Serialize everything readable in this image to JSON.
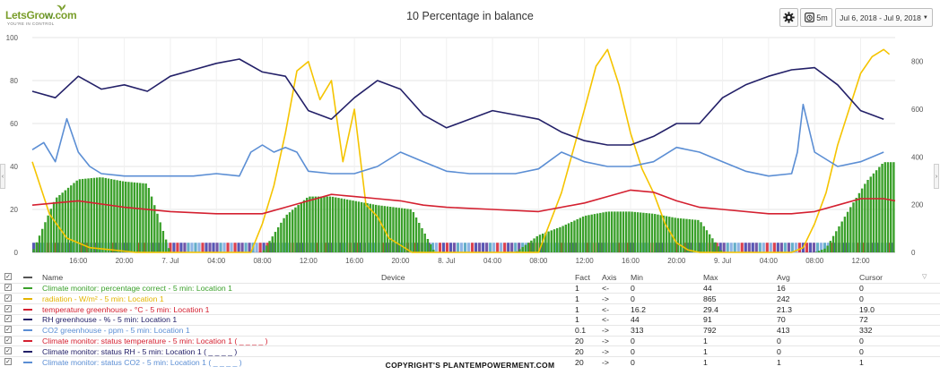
{
  "header": {
    "logo_text_a": "LetsGro",
    "logo_text_b": "w",
    "logo_text_c": ".com",
    "logo_tagline": "YOU'RE IN CONTROL",
    "title": "10 Percentage in balance",
    "interval_label": "5m",
    "date_range": "Jul 6, 2018 - Jul 9, 2018",
    "icons": {
      "settings": "gear-icon",
      "interval": "clock-icon",
      "dropdown": "chevron-down-icon"
    }
  },
  "chart_data": {
    "type": "line",
    "title": "10 Percentage in balance",
    "xlabel": "",
    "ylabel": "",
    "y_left": {
      "range": [
        0,
        100
      ],
      "ticks": [
        0,
        20,
        40,
        60,
        80,
        100
      ]
    },
    "y_right": {
      "range": [
        0,
        900
      ],
      "ticks": [
        0,
        200,
        400,
        600,
        800
      ]
    },
    "x_range_hours": [
      0,
      75
    ],
    "x_ticks": [
      {
        "h": 4,
        "label": "16:00"
      },
      {
        "h": 8,
        "label": "20:00"
      },
      {
        "h": 12,
        "label": "7. Jul"
      },
      {
        "h": 16,
        "label": "04:00"
      },
      {
        "h": 20,
        "label": "08:00"
      },
      {
        "h": 24,
        "label": "12:00"
      },
      {
        "h": 28,
        "label": "16:00"
      },
      {
        "h": 32,
        "label": "20:00"
      },
      {
        "h": 36,
        "label": "8. Jul"
      },
      {
        "h": 40,
        "label": "04:00"
      },
      {
        "h": 44,
        "label": "08:00"
      },
      {
        "h": 48,
        "label": "12:00"
      },
      {
        "h": 52,
        "label": "16:00"
      },
      {
        "h": 56,
        "label": "20:00"
      },
      {
        "h": 60,
        "label": "9. Jul"
      },
      {
        "h": 64,
        "label": "04:00"
      },
      {
        "h": 68,
        "label": "08:00"
      },
      {
        "h": 72,
        "label": "12:00"
      }
    ],
    "grid": true,
    "series": [
      {
        "name": "Climate monitor: percentage correct - 5 min: Location 1",
        "color": "#3aa02a",
        "axis": "left",
        "kind": "column",
        "x": [
          0,
          2,
          4,
          6,
          8,
          10,
          12,
          15,
          17,
          20,
          22,
          24,
          26,
          28,
          30,
          33,
          35,
          36,
          38,
          40,
          42,
          44,
          46,
          48,
          50,
          52,
          54,
          56,
          58,
          60,
          66,
          68,
          69,
          71,
          72.5,
          74
        ],
        "y": [
          0,
          25,
          34,
          35,
          33,
          32,
          0,
          0,
          0,
          0,
          17,
          26,
          26,
          24,
          22,
          20,
          0,
          0,
          0,
          0,
          0,
          8,
          12,
          17,
          19,
          19,
          18,
          16,
          15,
          0,
          0,
          0,
          2,
          20,
          33,
          42
        ]
      },
      {
        "name": "radiation - W/m² - 5 min: Location 1",
        "color": "#f5c400",
        "axis": "right",
        "x": [
          0,
          1.5,
          3,
          5,
          7,
          9,
          12,
          15,
          17,
          19,
          20,
          21,
          22,
          23,
          24,
          25,
          26,
          27,
          28,
          29,
          30,
          31,
          32,
          33,
          35,
          36,
          38,
          40,
          42,
          44,
          46,
          48,
          49,
          50,
          51,
          52,
          53,
          54,
          55,
          56,
          57,
          58,
          60,
          64,
          66,
          67,
          68,
          69,
          70,
          71,
          72,
          73,
          74,
          74.5
        ],
        "y": [
          380,
          160,
          60,
          20,
          10,
          0,
          0,
          0,
          0,
          0,
          120,
          280,
          500,
          760,
          800,
          640,
          720,
          380,
          600,
          200,
          150,
          60,
          30,
          0,
          0,
          0,
          0,
          0,
          0,
          0,
          250,
          600,
          780,
          850,
          700,
          500,
          350,
          250,
          120,
          40,
          10,
          0,
          0,
          0,
          0,
          20,
          120,
          250,
          450,
          600,
          750,
          820,
          850,
          830
        ]
      },
      {
        "name": "temperature greenhouse - °C - 5 min: Location 1",
        "color": "#d42030",
        "axis": "left",
        "x": [
          0,
          4,
          8,
          12,
          16,
          20,
          22,
          24,
          26,
          28,
          30,
          32,
          34,
          36,
          40,
          44,
          48,
          50,
          52,
          54,
          56,
          58,
          60,
          64,
          66,
          68,
          70,
          72,
          74,
          75
        ],
        "y": [
          22,
          24,
          21,
          19,
          18,
          18,
          21,
          24,
          27,
          26,
          25,
          24,
          22,
          21,
          20,
          19,
          23,
          26,
          29,
          28,
          24,
          21,
          20,
          18,
          18,
          19,
          22,
          25,
          25,
          24
        ]
      },
      {
        "name": "RH greenhouse - % - 5 min: Location 1",
        "color": "#232068",
        "axis": "left",
        "x": [
          0,
          2,
          4,
          6,
          8,
          10,
          12,
          14,
          16,
          18,
          20,
          22,
          24,
          26,
          28,
          30,
          32,
          34,
          36,
          38,
          40,
          42,
          44,
          46,
          48,
          50,
          52,
          54,
          56,
          58,
          60,
          62,
          64,
          66,
          68,
          70,
          72,
          74
        ],
        "y": [
          75,
          72,
          82,
          76,
          78,
          75,
          82,
          85,
          88,
          90,
          84,
          82,
          66,
          62,
          72,
          80,
          76,
          64,
          58,
          62,
          66,
          64,
          62,
          56,
          52,
          50,
          50,
          54,
          60,
          60,
          72,
          78,
          82,
          85,
          86,
          78,
          66,
          62
        ]
      },
      {
        "name": "CO2 greenhouse - ppm - 5 min: Location 1",
        "color": "#5b8ed4",
        "axis": "right",
        "x": [
          0,
          1,
          2,
          3,
          4,
          5,
          6,
          8,
          10,
          12,
          14,
          16,
          18,
          19,
          20,
          21,
          22,
          23,
          24,
          26,
          28,
          30,
          32,
          34,
          36,
          38,
          40,
          42,
          44,
          46,
          48,
          50,
          52,
          54,
          56,
          58,
          60,
          62,
          64,
          66,
          66.5,
          67,
          68,
          70,
          72,
          74
        ],
        "y": [
          430,
          460,
          380,
          560,
          420,
          360,
          330,
          320,
          320,
          320,
          320,
          330,
          320,
          420,
          450,
          420,
          440,
          420,
          340,
          330,
          330,
          360,
          420,
          380,
          340,
          330,
          330,
          330,
          350,
          420,
          380,
          360,
          360,
          380,
          440,
          420,
          380,
          340,
          320,
          330,
          420,
          620,
          420,
          360,
          380,
          420
        ]
      },
      {
        "name": "Climate monitor: status temperature - 5 min: Location 1 ( _ _ _ _ )",
        "color": "#d42030",
        "axis": "left",
        "kind": "status",
        "x": [
          0,
          75
        ],
        "y": [
          0,
          0
        ]
      },
      {
        "name": "Climate monitor: status RH - 5 min: Location 1 ( _ _ _ _ )",
        "color": "#232068",
        "axis": "left",
        "kind": "status",
        "x": [
          0,
          75
        ],
        "y": [
          0,
          0
        ]
      },
      {
        "name": "Climate monitor: status CO2 - 5 min: Location 1 ( _ _ _ _ )",
        "color": "#5b8ed4",
        "axis": "left",
        "kind": "status",
        "x": [
          0,
          75
        ],
        "y": [
          1,
          1
        ]
      }
    ]
  },
  "table": {
    "headers": {
      "name": "Name",
      "device": "Device",
      "fact": "Fact",
      "axis": "Axis",
      "min": "Min",
      "max": "Max",
      "avg": "Avg",
      "cursor": "Cursor"
    },
    "rows": [
      {
        "name": "Climate monitor: percentage correct - 5 min: Location 1",
        "fact": "1",
        "axis": "<-",
        "min": "0",
        "max": "44",
        "avg": "16",
        "cursor": "0",
        "color": "#3aa02a"
      },
      {
        "name": "radiation - W/m² - 5 min: Location 1",
        "fact": "1",
        "axis": "->",
        "min": "0",
        "max": "865",
        "avg": "242",
        "cursor": "0",
        "color": "#e3b400"
      },
      {
        "name": "temperature greenhouse - °C - 5 min: Location 1",
        "fact": "1",
        "axis": "<-",
        "min": "16.2",
        "max": "29.4",
        "avg": "21.3",
        "cursor": "19.0",
        "color": "#d42030"
      },
      {
        "name": "RH greenhouse - % - 5 min: Location 1",
        "fact": "1",
        "axis": "<-",
        "min": "44",
        "max": "91",
        "avg": "70",
        "cursor": "72",
        "color": "#232068"
      },
      {
        "name": "CO2 greenhouse - ppm - 5 min: Location 1",
        "fact": "0.1",
        "axis": "->",
        "min": "313",
        "max": "792",
        "avg": "413",
        "cursor": "332",
        "color": "#5b8ed4"
      },
      {
        "name": "Climate monitor: status temperature - 5 min: Location 1 ( _ _ _ _ )",
        "fact": "20",
        "axis": "->",
        "min": "0",
        "max": "1",
        "avg": "0",
        "cursor": "0",
        "color": "#d42030"
      },
      {
        "name": "Climate monitor: status RH - 5 min: Location 1 ( _ _ _ _ )",
        "fact": "20",
        "axis": "->",
        "min": "0",
        "max": "1",
        "avg": "0",
        "cursor": "0",
        "color": "#232068"
      },
      {
        "name": "Climate monitor: status CO2 - 5 min: Location 1 ( _ _ _ _ )",
        "fact": "20",
        "axis": "->",
        "min": "0",
        "max": "1",
        "avg": "1",
        "cursor": "1",
        "color": "#5b8ed4"
      }
    ]
  },
  "footer": {
    "copyright": "COPYRIGHT'S PLANTEMPOWERMENT.COM"
  }
}
